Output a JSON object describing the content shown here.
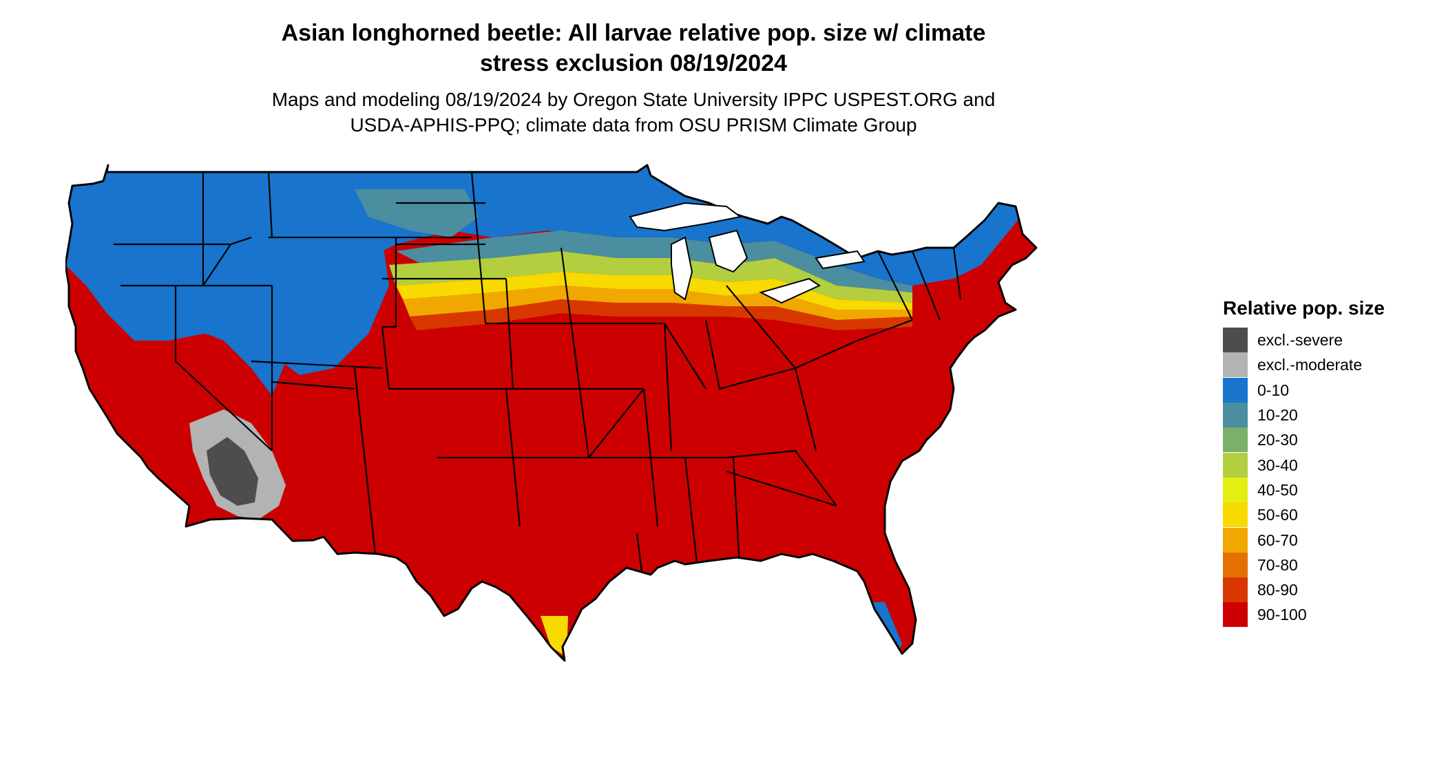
{
  "title": {
    "line1": "Asian longhorned beetle: All larvae relative pop. size w/ climate",
    "line2": "stress exclusion 08/19/2024"
  },
  "subtitle": {
    "line1": "Maps and modeling 08/19/2024 by Oregon State University IPPC USPEST.ORG and",
    "line2": "USDA-APHIS-PPQ; climate data from OSU PRISM Climate Group"
  },
  "legend": {
    "title": "Relative pop. size",
    "items": [
      {
        "label": "excl.-severe",
        "color": "#4d4d4d"
      },
      {
        "label": "excl.-moderate",
        "color": "#b3b3b3"
      },
      {
        "label": "0-10",
        "color": "#1874cd"
      },
      {
        "label": "10-20",
        "color": "#4a8ea0"
      },
      {
        "label": "20-30",
        "color": "#7ab06a"
      },
      {
        "label": "30-40",
        "color": "#b3cf3f"
      },
      {
        "label": "40-50",
        "color": "#e5ee12"
      },
      {
        "label": "50-60",
        "color": "#f8d900"
      },
      {
        "label": "60-70",
        "color": "#f0a800"
      },
      {
        "label": "70-80",
        "color": "#e47000"
      },
      {
        "label": "80-90",
        "color": "#d83800"
      },
      {
        "label": "90-100",
        "color": "#cc0000"
      }
    ]
  },
  "map": {
    "region": "Contiguous United States",
    "ocean_color": "#ffffff",
    "border_color": "#000000"
  }
}
